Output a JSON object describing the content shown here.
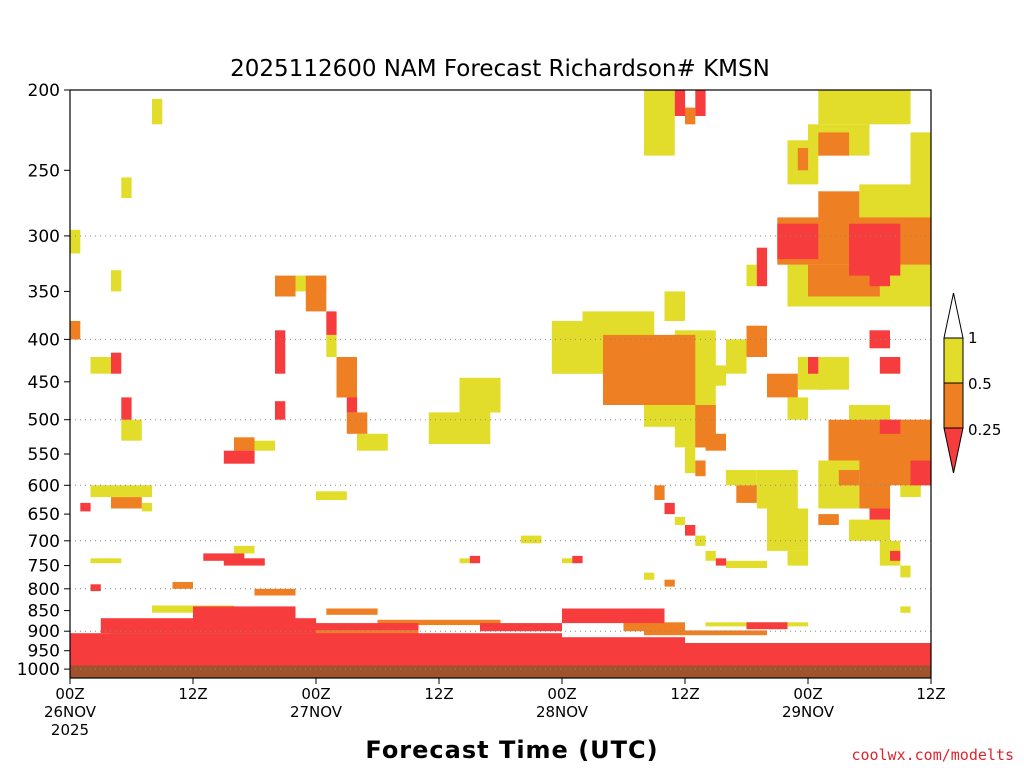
{
  "chart_data": {
    "type": "heatmap",
    "title": "2025112600 NAM Forecast Richardson# KMSN",
    "xlabel": "Forecast Time (UTC)",
    "ylabel": "",
    "x_range_hours": [
      0,
      84
    ],
    "y_range_hpa": [
      1025,
      200
    ],
    "y_ticks": [
      {
        "value": 200,
        "label": "200"
      },
      {
        "value": 250,
        "label": "250"
      },
      {
        "value": 300,
        "label": "300"
      },
      {
        "value": 350,
        "label": "350"
      },
      {
        "value": 400,
        "label": "400"
      },
      {
        "value": 450,
        "label": "450"
      },
      {
        "value": 500,
        "label": "500"
      },
      {
        "value": 550,
        "label": "550"
      },
      {
        "value": 600,
        "label": "600"
      },
      {
        "value": 650,
        "label": "650"
      },
      {
        "value": 700,
        "label": "700"
      },
      {
        "value": 750,
        "label": "750"
      },
      {
        "value": 800,
        "label": "800"
      },
      {
        "value": 850,
        "label": "850"
      },
      {
        "value": 900,
        "label": "900"
      },
      {
        "value": 950,
        "label": "950"
      },
      {
        "value": 1000,
        "label": "1000"
      }
    ],
    "gridlines_hpa": [
      300,
      400,
      500,
      600,
      700,
      800,
      900,
      1000
    ],
    "x_ticks": [
      {
        "hour": 0,
        "lines": [
          "00Z",
          "26NOV",
          "2025"
        ]
      },
      {
        "hour": 12,
        "lines": [
          "12Z"
        ]
      },
      {
        "hour": 24,
        "lines": [
          "00Z",
          "27NOV"
        ]
      },
      {
        "hour": 36,
        "lines": [
          "12Z"
        ]
      },
      {
        "hour": 48,
        "lines": [
          "00Z",
          "28NOV"
        ]
      },
      {
        "hour": 60,
        "lines": [
          "12Z"
        ]
      },
      {
        "hour": 72,
        "lines": [
          "00Z",
          "29NOV"
        ]
      },
      {
        "hour": 84,
        "lines": [
          "12Z"
        ]
      }
    ],
    "colorbar": {
      "labels": [
        "1",
        "0.5",
        "0.25"
      ],
      "levels": [
        {
          "name": "Ri < 0.25",
          "color": "#f63c3c"
        },
        {
          "name": "0.25 - 0.5",
          "color": "#ef7f23"
        },
        {
          "name": "0.5 - 1",
          "color": "#e2dd2b"
        },
        {
          "name": "Ri > 1",
          "color": "#ffffff"
        }
      ]
    },
    "ground": {
      "name": "terrain below surface",
      "color": "#a0522d",
      "surface_hpa": 990
    },
    "regions": [
      {
        "t0": 0,
        "t1": 84,
        "p0": 930,
        "p1": 990,
        "level": "red"
      },
      {
        "t0": 0,
        "t1": 48,
        "p0": 905,
        "p1": 935,
        "level": "red"
      },
      {
        "t0": 48,
        "t1": 60,
        "p0": 915,
        "p1": 940,
        "level": "red"
      },
      {
        "t0": 3,
        "t1": 24,
        "p0": 868,
        "p1": 905,
        "level": "red"
      },
      {
        "t0": 12,
        "t1": 22,
        "p0": 840,
        "p1": 870,
        "level": "red"
      },
      {
        "t0": 4,
        "t1": 34,
        "p0": 898,
        "p1": 910,
        "level": "orange"
      },
      {
        "t0": 24,
        "t1": 34,
        "p0": 880,
        "p1": 898,
        "level": "red"
      },
      {
        "t0": 25,
        "t1": 30,
        "p0": 845,
        "p1": 860,
        "level": "orange"
      },
      {
        "t0": 30,
        "t1": 42,
        "p0": 872,
        "p1": 885,
        "level": "orange"
      },
      {
        "t0": 40,
        "t1": 48,
        "p0": 880,
        "p1": 900,
        "level": "red"
      },
      {
        "t0": 48,
        "t1": 58,
        "p0": 845,
        "p1": 880,
        "level": "red"
      },
      {
        "t0": 54,
        "t1": 60,
        "p0": 878,
        "p1": 900,
        "level": "orange"
      },
      {
        "t0": 56,
        "t1": 68,
        "p0": 898,
        "p1": 910,
        "level": "orange"
      },
      {
        "t0": 66,
        "t1": 70,
        "p0": 878,
        "p1": 895,
        "level": "red"
      },
      {
        "t0": 62,
        "t1": 72,
        "p0": 878,
        "p1": 888,
        "level": "yellow"
      },
      {
        "t0": 72,
        "t1": 84,
        "p0": 930,
        "p1": 945,
        "level": "orange"
      },
      {
        "t0": 8,
        "t1": 16,
        "p0": 838,
        "p1": 855,
        "level": "yellow"
      },
      {
        "t0": 18,
        "t1": 22,
        "p0": 800,
        "p1": 815,
        "level": "orange"
      },
      {
        "t0": 15,
        "t1": 19,
        "p0": 735,
        "p1": 750,
        "level": "red"
      },
      {
        "t0": 13,
        "t1": 17,
        "p0": 725,
        "p1": 740,
        "level": "red"
      },
      {
        "t0": 16,
        "t1": 18,
        "p0": 710,
        "p1": 725,
        "level": "yellow"
      },
      {
        "t0": 2,
        "t1": 8,
        "p0": 600,
        "p1": 620,
        "level": "yellow"
      },
      {
        "t0": 4,
        "t1": 7,
        "p0": 620,
        "p1": 640,
        "level": "orange"
      },
      {
        "t0": 1,
        "t1": 2,
        "p0": 630,
        "p1": 645,
        "level": "red"
      },
      {
        "t0": 7,
        "t1": 8,
        "p0": 630,
        "p1": 645,
        "level": "yellow"
      },
      {
        "t0": 2,
        "t1": 5,
        "p0": 735,
        "p1": 745,
        "level": "yellow"
      },
      {
        "t0": 0,
        "t1": 1,
        "p0": 295,
        "p1": 315,
        "level": "yellow"
      },
      {
        "t0": 0,
        "t1": 1,
        "p0": 380,
        "p1": 400,
        "level": "orange"
      },
      {
        "t0": 2,
        "t1": 4,
        "p0": 420,
        "p1": 440,
        "level": "yellow"
      },
      {
        "t0": 4,
        "t1": 5,
        "p0": 415,
        "p1": 440,
        "level": "red"
      },
      {
        "t0": 5,
        "t1": 6,
        "p0": 470,
        "p1": 500,
        "level": "red"
      },
      {
        "t0": 5,
        "t1": 7,
        "p0": 500,
        "p1": 530,
        "level": "yellow"
      },
      {
        "t0": 8,
        "t1": 9,
        "p0": 205,
        "p1": 220,
        "level": "yellow"
      },
      {
        "t0": 5,
        "t1": 6,
        "p0": 255,
        "p1": 270,
        "level": "yellow"
      },
      {
        "t0": 4,
        "t1": 5,
        "p0": 330,
        "p1": 350,
        "level": "yellow"
      },
      {
        "t0": 16,
        "t1": 18,
        "p0": 525,
        "p1": 545,
        "level": "orange"
      },
      {
        "t0": 15,
        "t1": 18,
        "p0": 545,
        "p1": 565,
        "level": "red"
      },
      {
        "t0": 18,
        "t1": 20,
        "p0": 530,
        "p1": 545,
        "level": "yellow"
      },
      {
        "t0": 20,
        "t1": 21,
        "p0": 390,
        "p1": 440,
        "level": "red"
      },
      {
        "t0": 20,
        "t1": 21,
        "p0": 475,
        "p1": 500,
        "level": "red"
      },
      {
        "t0": 20,
        "t1": 22,
        "p0": 335,
        "p1": 355,
        "level": "orange"
      },
      {
        "t0": 22,
        "t1": 25,
        "p0": 335,
        "p1": 350,
        "level": "yellow"
      },
      {
        "t0": 23,
        "t1": 25,
        "p0": 335,
        "p1": 370,
        "level": "orange"
      },
      {
        "t0": 25,
        "t1": 26,
        "p0": 370,
        "p1": 395,
        "level": "red"
      },
      {
        "t0": 25,
        "t1": 26,
        "p0": 395,
        "p1": 420,
        "level": "yellow"
      },
      {
        "t0": 26,
        "t1": 28,
        "p0": 420,
        "p1": 470,
        "level": "orange"
      },
      {
        "t0": 27,
        "t1": 28,
        "p0": 470,
        "p1": 490,
        "level": "red"
      },
      {
        "t0": 27,
        "t1": 29,
        "p0": 490,
        "p1": 520,
        "level": "orange"
      },
      {
        "t0": 28,
        "t1": 31,
        "p0": 520,
        "p1": 545,
        "level": "yellow"
      },
      {
        "t0": 24,
        "t1": 27,
        "p0": 610,
        "p1": 625,
        "level": "yellow"
      },
      {
        "t0": 35,
        "t1": 41,
        "p0": 490,
        "p1": 535,
        "level": "yellow"
      },
      {
        "t0": 38,
        "t1": 42,
        "p0": 445,
        "p1": 490,
        "level": "yellow"
      },
      {
        "t0": 39,
        "t1": 40,
        "p0": 730,
        "p1": 745,
        "level": "red"
      },
      {
        "t0": 38,
        "t1": 39,
        "p0": 735,
        "p1": 745,
        "level": "yellow"
      },
      {
        "t0": 44,
        "t1": 46,
        "p0": 690,
        "p1": 705,
        "level": "yellow"
      },
      {
        "t0": 47,
        "t1": 52,
        "p0": 380,
        "p1": 440,
        "level": "yellow"
      },
      {
        "t0": 50,
        "t1": 57,
        "p0": 370,
        "p1": 400,
        "level": "yellow"
      },
      {
        "t0": 52,
        "t1": 61,
        "p0": 395,
        "p1": 480,
        "level": "orange"
      },
      {
        "t0": 56,
        "t1": 60,
        "p0": 480,
        "p1": 510,
        "level": "yellow"
      },
      {
        "t0": 58,
        "t1": 60,
        "p0": 350,
        "p1": 380,
        "level": "yellow"
      },
      {
        "t0": 59,
        "t1": 63,
        "p0": 390,
        "p1": 540,
        "level": "yellow"
      },
      {
        "t0": 61,
        "t1": 63,
        "p0": 480,
        "p1": 540,
        "level": "orange"
      },
      {
        "t0": 60,
        "t1": 61,
        "p0": 540,
        "p1": 580,
        "level": "yellow"
      },
      {
        "t0": 61,
        "t1": 62,
        "p0": 560,
        "p1": 585,
        "level": "orange"
      },
      {
        "t0": 62,
        "t1": 64,
        "p0": 520,
        "p1": 545,
        "level": "orange"
      },
      {
        "t0": 64,
        "t1": 67,
        "p0": 575,
        "p1": 600,
        "level": "yellow"
      },
      {
        "t0": 65,
        "t1": 67,
        "p0": 600,
        "p1": 630,
        "level": "orange"
      },
      {
        "t0": 67,
        "t1": 71,
        "p0": 575,
        "p1": 640,
        "level": "yellow"
      },
      {
        "t0": 68,
        "t1": 72,
        "p0": 640,
        "p1": 720,
        "level": "yellow"
      },
      {
        "t0": 70,
        "t1": 72,
        "p0": 720,
        "p1": 750,
        "level": "yellow"
      },
      {
        "t0": 62,
        "t1": 64,
        "p0": 430,
        "p1": 455,
        "level": "yellow"
      },
      {
        "t0": 64,
        "t1": 66,
        "p0": 400,
        "p1": 440,
        "level": "yellow"
      },
      {
        "t0": 66,
        "t1": 68,
        "p0": 385,
        "p1": 420,
        "level": "orange"
      },
      {
        "t0": 68,
        "t1": 71,
        "p0": 440,
        "p1": 470,
        "level": "orange"
      },
      {
        "t0": 70,
        "t1": 72,
        "p0": 470,
        "p1": 500,
        "level": "yellow"
      },
      {
        "t0": 71,
        "t1": 74,
        "p0": 420,
        "p1": 460,
        "level": "yellow"
      },
      {
        "t0": 72,
        "t1": 73,
        "p0": 420,
        "p1": 440,
        "level": "red"
      },
      {
        "t0": 56,
        "t1": 59,
        "p0": 200,
        "p1": 240,
        "level": "yellow"
      },
      {
        "t0": 59,
        "t1": 60,
        "p0": 200,
        "p1": 215,
        "level": "red"
      },
      {
        "t0": 60,
        "t1": 61,
        "p0": 210,
        "p1": 220,
        "level": "orange"
      },
      {
        "t0": 61,
        "t1": 62,
        "p0": 200,
        "p1": 215,
        "level": "red"
      },
      {
        "t0": 73,
        "t1": 82,
        "p0": 200,
        "p1": 220,
        "level": "yellow"
      },
      {
        "t0": 72,
        "t1": 78,
        "p0": 220,
        "p1": 240,
        "level": "yellow"
      },
      {
        "t0": 73,
        "t1": 76,
        "p0": 225,
        "p1": 240,
        "level": "orange"
      },
      {
        "t0": 70,
        "t1": 73,
        "p0": 230,
        "p1": 260,
        "level": "yellow"
      },
      {
        "t0": 71,
        "t1": 72,
        "p0": 235,
        "p1": 250,
        "level": "orange"
      },
      {
        "t0": 82,
        "t1": 84,
        "p0": 225,
        "p1": 250,
        "level": "yellow"
      },
      {
        "t0": 69,
        "t1": 84,
        "p0": 285,
        "p1": 325,
        "level": "orange"
      },
      {
        "t0": 69,
        "t1": 73,
        "p0": 290,
        "p1": 320,
        "level": "red"
      },
      {
        "t0": 76,
        "t1": 81,
        "p0": 290,
        "p1": 335,
        "level": "red"
      },
      {
        "t0": 73,
        "t1": 77,
        "p0": 265,
        "p1": 290,
        "level": "orange"
      },
      {
        "t0": 70,
        "t1": 84,
        "p0": 325,
        "p1": 365,
        "level": "yellow"
      },
      {
        "t0": 72,
        "t1": 79,
        "p0": 325,
        "p1": 355,
        "level": "orange"
      },
      {
        "t0": 78,
        "t1": 80,
        "p0": 325,
        "p1": 345,
        "level": "red"
      },
      {
        "t0": 77,
        "t1": 84,
        "p0": 260,
        "p1": 290,
        "level": "yellow"
      },
      {
        "t0": 82,
        "t1": 84,
        "p0": 245,
        "p1": 270,
        "level": "yellow"
      },
      {
        "t0": 67,
        "t1": 68,
        "p0": 310,
        "p1": 345,
        "level": "red"
      },
      {
        "t0": 66,
        "t1": 67,
        "p0": 325,
        "p1": 345,
        "level": "yellow"
      },
      {
        "t0": 78,
        "t1": 80,
        "p0": 390,
        "p1": 410,
        "level": "red"
      },
      {
        "t0": 79,
        "t1": 81,
        "p0": 420,
        "p1": 440,
        "level": "red"
      },
      {
        "t0": 73,
        "t1": 76,
        "p0": 420,
        "p1": 460,
        "level": "yellow"
      },
      {
        "t0": 74,
        "t1": 84,
        "p0": 500,
        "p1": 560,
        "level": "orange"
      },
      {
        "t0": 79,
        "t1": 81,
        "p0": 500,
        "p1": 520,
        "level": "red"
      },
      {
        "t0": 76,
        "t1": 80,
        "p0": 480,
        "p1": 500,
        "level": "yellow"
      },
      {
        "t0": 81,
        "t1": 84,
        "p0": 500,
        "p1": 530,
        "level": "yellow"
      },
      {
        "t0": 73,
        "t1": 77,
        "p0": 560,
        "p1": 640,
        "level": "yellow"
      },
      {
        "t0": 75,
        "t1": 77,
        "p0": 575,
        "p1": 600,
        "level": "orange"
      },
      {
        "t0": 77,
        "t1": 80,
        "p0": 560,
        "p1": 640,
        "level": "orange"
      },
      {
        "t0": 78,
        "t1": 80,
        "p0": 640,
        "p1": 660,
        "level": "red"
      },
      {
        "t0": 80,
        "t1": 84,
        "p0": 560,
        "p1": 600,
        "level": "orange"
      },
      {
        "t0": 82,
        "t1": 84,
        "p0": 560,
        "p1": 600,
        "level": "red"
      },
      {
        "t0": 81,
        "t1": 83,
        "p0": 600,
        "p1": 620,
        "level": "yellow"
      },
      {
        "t0": 76,
        "t1": 80,
        "p0": 660,
        "p1": 700,
        "level": "yellow"
      },
      {
        "t0": 79,
        "t1": 81,
        "p0": 700,
        "p1": 750,
        "level": "yellow"
      },
      {
        "t0": 80,
        "t1": 81,
        "p0": 720,
        "p1": 740,
        "level": "red"
      },
      {
        "t0": 81,
        "t1": 82,
        "p0": 750,
        "p1": 775,
        "level": "yellow"
      },
      {
        "t0": 73,
        "t1": 75,
        "p0": 650,
        "p1": 670,
        "level": "orange"
      },
      {
        "t0": 57,
        "t1": 58,
        "p0": 600,
        "p1": 625,
        "level": "orange"
      },
      {
        "t0": 58,
        "t1": 59,
        "p0": 630,
        "p1": 650,
        "level": "red"
      },
      {
        "t0": 59,
        "t1": 60,
        "p0": 655,
        "p1": 670,
        "level": "yellow"
      },
      {
        "t0": 60,
        "t1": 61,
        "p0": 670,
        "p1": 690,
        "level": "red"
      },
      {
        "t0": 61,
        "t1": 62,
        "p0": 690,
        "p1": 710,
        "level": "yellow"
      },
      {
        "t0": 62,
        "t1": 63,
        "p0": 720,
        "p1": 740,
        "level": "yellow"
      },
      {
        "t0": 63,
        "t1": 64,
        "p0": 735,
        "p1": 750,
        "level": "red"
      },
      {
        "t0": 64,
        "t1": 68,
        "p0": 740,
        "p1": 755,
        "level": "yellow"
      },
      {
        "t0": 49,
        "t1": 50,
        "p0": 730,
        "p1": 745,
        "level": "red"
      },
      {
        "t0": 48,
        "t1": 49,
        "p0": 735,
        "p1": 745,
        "level": "yellow"
      },
      {
        "t0": 56,
        "t1": 57,
        "p0": 765,
        "p1": 780,
        "level": "yellow"
      },
      {
        "t0": 58,
        "t1": 59,
        "p0": 780,
        "p1": 795,
        "level": "orange"
      },
      {
        "t0": 81,
        "t1": 82,
        "p0": 840,
        "p1": 855,
        "level": "yellow"
      },
      {
        "t0": 2,
        "t1": 3,
        "p0": 790,
        "p1": 805,
        "level": "red"
      },
      {
        "t0": 10,
        "t1": 12,
        "p0": 785,
        "p1": 800,
        "level": "orange"
      }
    ]
  }
}
